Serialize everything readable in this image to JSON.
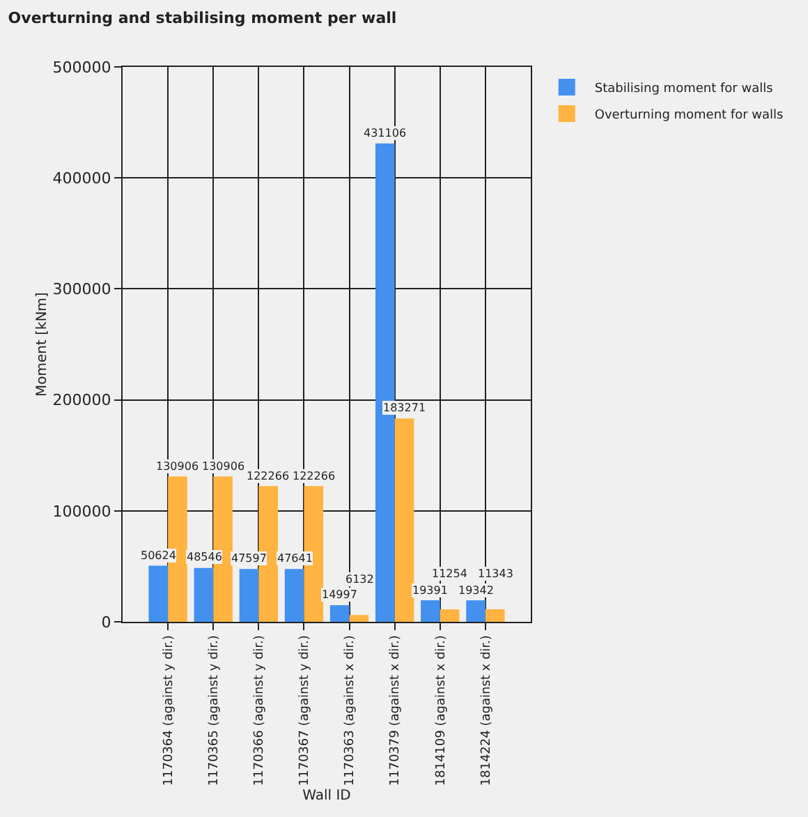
{
  "chart_data": {
    "type": "bar",
    "title": "Overturning and stabilising moment per wall",
    "xlabel": "Wall ID",
    "ylabel": "Moment [kNm]",
    "categories": [
      "1170364 (against y dir.)",
      "1170365 (against y dir.)",
      "1170366 (against y dir.)",
      "1170367 (against y dir.)",
      "1170363 (against x dir.)",
      "1170379 (against x dir.)",
      "1814109 (against x dir.)",
      "1814224 (against x dir.)"
    ],
    "series": [
      {
        "name": "Stabilising moment for walls",
        "color": "#4390ee",
        "values": [
          50624,
          48546,
          47597,
          47641,
          14997,
          431106,
          19391,
          19342
        ]
      },
      {
        "name": "Overturning moment for walls",
        "color": "#ffb441",
        "values": [
          130906,
          130906,
          122266,
          122266,
          6132,
          183271,
          11254,
          11343
        ]
      }
    ],
    "ylim": [
      0,
      500000
    ],
    "yticks": [
      0,
      100000,
      200000,
      300000,
      400000,
      500000
    ],
    "grid": true,
    "legend": "top right",
    "data_labels": true
  }
}
